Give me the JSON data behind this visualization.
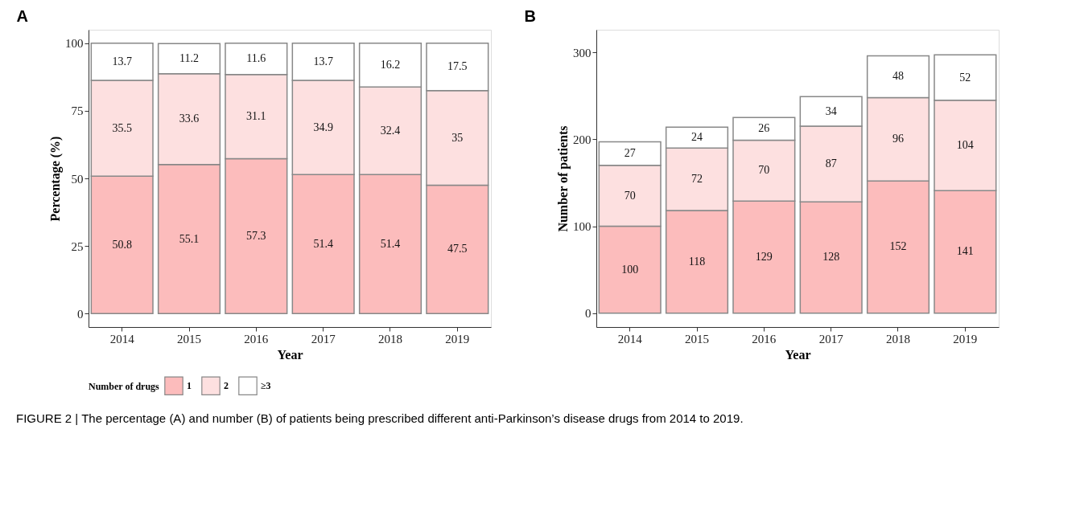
{
  "chart_data": [
    {
      "type": "bar",
      "title": "A",
      "xlabel": "Year",
      "ylabel": "Percentage (%)",
      "stacked": true,
      "data_labels": true,
      "legend": "bottom",
      "legend_title": "Number of drugs",
      "grid": false,
      "categories": [
        "2014",
        "2015",
        "2016",
        "2017",
        "2018",
        "2019"
      ],
      "ylim": [
        -5,
        105
      ],
      "yticks": [
        0,
        25,
        50,
        75,
        100
      ],
      "series": [
        {
          "name": "1",
          "color": "#fcbcbc",
          "values": [
            50.8,
            55.1,
            57.3,
            51.4,
            51.4,
            47.5
          ]
        },
        {
          "name": "2",
          "color": "#fde0e0",
          "values": [
            35.5,
            33.6,
            31.1,
            34.9,
            32.4,
            35
          ]
        },
        {
          "name": "≥3",
          "color": "#ffffff",
          "values": [
            13.7,
            11.2,
            11.6,
            13.7,
            16.2,
            17.5
          ]
        }
      ],
      "annotations": [
        "FIGURE 2 | The percentage (A) and number (B) of patients being prescribed different anti-Parkinson’s disease drugs from 2014 to 2019."
      ]
    },
    {
      "type": "bar",
      "title": "B",
      "xlabel": "Year",
      "ylabel": "Number of patients",
      "stacked": true,
      "data_labels": true,
      "grid": false,
      "categories": [
        "2014",
        "2015",
        "2016",
        "2017",
        "2018",
        "2019"
      ],
      "ylim": [
        -16,
        326
      ],
      "yticks": [
        0,
        100,
        200,
        300
      ],
      "series": [
        {
          "name": "1",
          "color": "#fcbcbc",
          "values": [
            100,
            118,
            129,
            128,
            152,
            141
          ]
        },
        {
          "name": "2",
          "color": "#fde0e0",
          "values": [
            70,
            72,
            70,
            87,
            96,
            104
          ]
        },
        {
          "name": "≥3",
          "color": "#ffffff",
          "values": [
            27,
            24,
            26,
            34,
            48,
            52
          ]
        }
      ]
    }
  ]
}
